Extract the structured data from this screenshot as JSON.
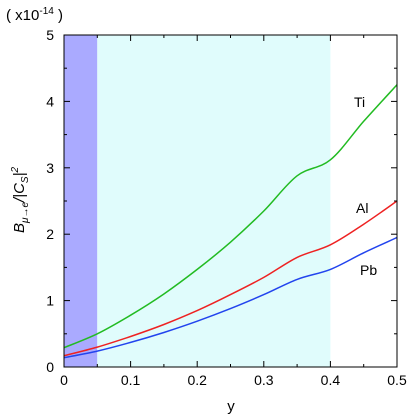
{
  "chart_data": {
    "type": "line",
    "scale_label": "( x10",
    "scale_exponent": "-14",
    "scale_close": " )",
    "xlabel": "y",
    "ylabel_main": "B",
    "ylabel_sub": "μ→e",
    "ylabel_mid": "/|C",
    "ylabel_sub2": "S",
    "ylabel_end": "|",
    "ylabel_sup": "2",
    "xlim": [
      0,
      0.5
    ],
    "ylim": [
      0,
      5
    ],
    "xticks": [
      "0",
      "0.1",
      "0.2",
      "0.3",
      "0.4",
      "0.5"
    ],
    "yticks": [
      "0",
      "1",
      "2",
      "3",
      "4",
      "5"
    ],
    "shaded_regions": [
      {
        "x_range": [
          0,
          0.05
        ],
        "color": "#aaaaff"
      },
      {
        "x_range": [
          0.05,
          0.4
        ],
        "color": "#e0fcfc"
      }
    ],
    "series": [
      {
        "name": "Ti",
        "color": "#22bb22",
        "x": [
          0,
          0.05,
          0.1,
          0.15,
          0.2,
          0.25,
          0.3,
          0.35,
          0.4,
          0.45,
          0.5
        ],
        "values": [
          0.29,
          0.5,
          0.78,
          1.1,
          1.47,
          1.88,
          2.35,
          2.88,
          3.12,
          3.7,
          4.25
        ]
      },
      {
        "name": "Al",
        "color": "#ee2222",
        "x": [
          0,
          0.05,
          0.1,
          0.15,
          0.2,
          0.25,
          0.3,
          0.35,
          0.4,
          0.45,
          0.5
        ],
        "values": [
          0.17,
          0.3,
          0.46,
          0.64,
          0.85,
          1.09,
          1.35,
          1.65,
          1.84,
          2.15,
          2.5
        ]
      },
      {
        "name": "Pb",
        "color": "#2244ee",
        "x": [
          0,
          0.05,
          0.1,
          0.15,
          0.2,
          0.25,
          0.3,
          0.35,
          0.4,
          0.45,
          0.5
        ],
        "values": [
          0.14,
          0.24,
          0.37,
          0.52,
          0.69,
          0.88,
          1.09,
          1.32,
          1.47,
          1.72,
          1.95
        ]
      }
    ]
  }
}
